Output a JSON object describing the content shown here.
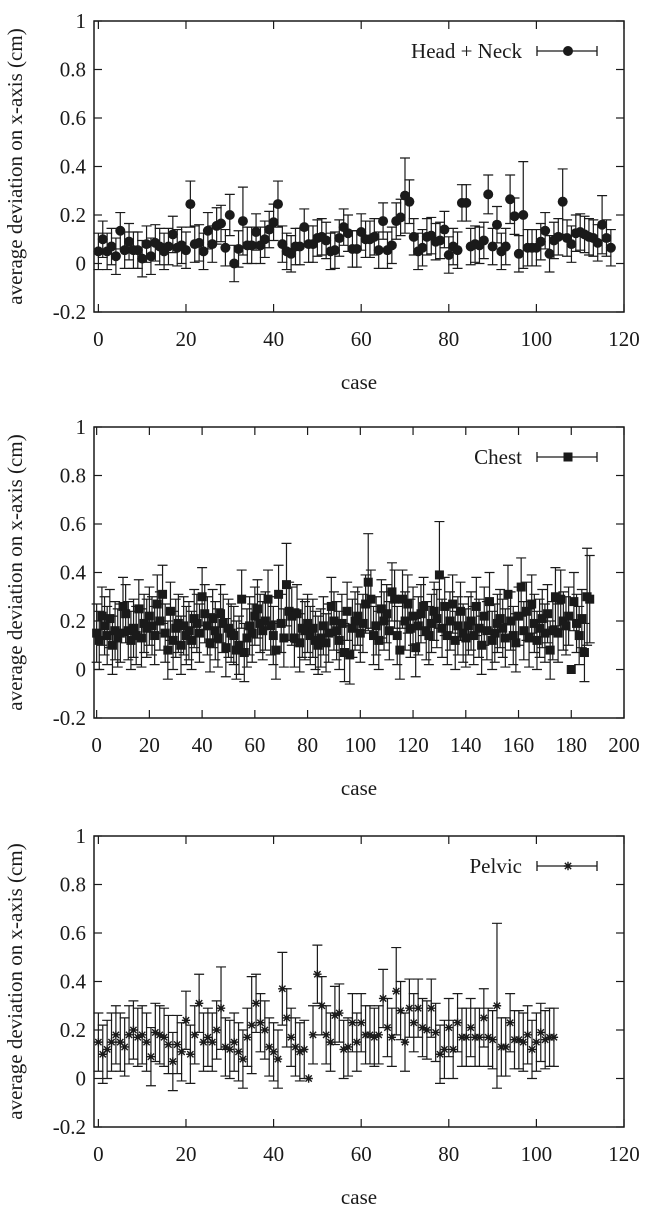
{
  "chart_data": [
    {
      "type": "scatter",
      "title": "",
      "legend": "Head + Neck",
      "legend_placement": "top-right",
      "marker": "circle",
      "xlabel": "case",
      "ylabel": "average deviation on x-axis (cm)",
      "xlim": [
        -1,
        120
      ],
      "ylim": [
        -0.2,
        1
      ],
      "xticks": [
        "0",
        "20",
        "40",
        "60",
        "80",
        "100",
        "120"
      ],
      "yticks": [
        "-0.2",
        "0",
        "0.2",
        "0.4",
        "0.6",
        "0.8",
        "1"
      ],
      "values": [
        0.05,
        0.1,
        0.05,
        0.07,
        0.03,
        0.135,
        0.055,
        0.09,
        0.055,
        0.055,
        0.02,
        0.08,
        0.03,
        0.085,
        0.07,
        0.05,
        0.07,
        0.12,
        0.065,
        0.075,
        0.055,
        0.245,
        0.08,
        0.085,
        0.05,
        0.135,
        0.08,
        0.155,
        0.165,
        0.065,
        0.2,
        0.0,
        0.06,
        0.175,
        0.075,
        0.075,
        0.13,
        0.075,
        0.1,
        0.14,
        0.17,
        0.245,
        0.08,
        0.05,
        0.04,
        0.07,
        0.07,
        0.15,
        0.08,
        0.08,
        0.105,
        0.11,
        0.095,
        0.05,
        0.055,
        0.105,
        0.15,
        0.125,
        0.06,
        0.06,
        0.13,
        0.1,
        0.1,
        0.11,
        0.055,
        0.175,
        0.055,
        0.075,
        0.175,
        0.19,
        0.28,
        0.255,
        0.11,
        0.05,
        0.065,
        0.11,
        0.115,
        0.09,
        0.095,
        0.14,
        0.035,
        0.07,
        0.055,
        0.25,
        0.25,
        0.07,
        0.08,
        0.075,
        0.095,
        0.285,
        0.07,
        0.16,
        0.05,
        0.07,
        0.265,
        0.195,
        0.04,
        0.2,
        0.065,
        0.065,
        0.065,
        0.09,
        0.135,
        0.04,
        0.095,
        0.11,
        0.255,
        0.105,
        0.08,
        0.125,
        0.13,
        0.12,
        0.11,
        0.105,
        0.085,
        0.16,
        0.105,
        0.065
      ],
      "error_default": 0.075,
      "error_overrides": {
        "21": 0.095,
        "30": 0.085,
        "33": 0.14,
        "41": 0.095,
        "70": 0.155,
        "71": 0.09,
        "89": 0.08,
        "94": 0.1,
        "97": 0.22,
        "106": 0.135,
        "115": 0.12
      }
    },
    {
      "type": "scatter",
      "title": "",
      "legend": "Chest",
      "legend_placement": "top-right",
      "marker": "square",
      "xlabel": "case",
      "ylabel": "average deviation on x-axis (cm)",
      "xlim": [
        -1,
        200
      ],
      "ylim": [
        -0.2,
        1
      ],
      "xticks": [
        "0",
        "20",
        "40",
        "60",
        "80",
        "100",
        "120",
        "140",
        "160",
        "180",
        "200"
      ],
      "yticks": [
        "-0.2",
        "0",
        "0.2",
        "0.4",
        "0.6",
        "0.8",
        "1"
      ],
      "values": [
        0.15,
        0.12,
        0.22,
        0.18,
        0.14,
        0.21,
        0.1,
        0.16,
        0.13,
        0.15,
        0.26,
        0.23,
        0.16,
        0.12,
        0.17,
        0.14,
        0.25,
        0.13,
        0.19,
        0.17,
        0.22,
        0.18,
        0.14,
        0.27,
        0.2,
        0.31,
        0.15,
        0.08,
        0.24,
        0.12,
        0.17,
        0.19,
        0.1,
        0.18,
        0.14,
        0.16,
        0.12,
        0.21,
        0.19,
        0.15,
        0.3,
        0.23,
        0.18,
        0.11,
        0.21,
        0.16,
        0.13,
        0.23,
        0.19,
        0.09,
        0.17,
        0.15,
        0.14,
        0.08,
        0.1,
        0.29,
        0.07,
        0.13,
        0.18,
        0.15,
        0.22,
        0.25,
        0.19,
        0.16,
        0.2,
        0.29,
        0.18,
        0.14,
        0.08,
        0.31,
        0.19,
        0.13,
        0.35,
        0.24,
        0.22,
        0.13,
        0.23,
        0.11,
        0.17,
        0.16,
        0.19,
        0.14,
        0.17,
        0.12,
        0.1,
        0.13,
        0.18,
        0.11,
        0.15,
        0.26,
        0.2,
        0.16,
        0.12,
        0.19,
        0.07,
        0.24,
        0.06,
        0.17,
        0.2,
        0.22,
        0.15,
        0.19,
        0.27,
        0.36,
        0.29,
        0.14,
        0.18,
        0.12,
        0.25,
        0.2,
        0.23,
        0.16,
        0.32,
        0.29,
        0.14,
        0.08,
        0.29,
        0.2,
        0.27,
        0.17,
        0.22,
        0.09,
        0.18,
        0.23,
        0.26,
        0.16,
        0.14,
        0.19,
        0.24,
        0.21,
        0.39,
        0.17,
        0.26,
        0.14,
        0.2,
        0.27,
        0.12,
        0.18,
        0.24,
        0.15,
        0.13,
        0.18,
        0.2,
        0.14,
        0.26,
        0.17,
        0.1,
        0.22,
        0.16,
        0.28,
        0.12,
        0.15,
        0.19,
        0.21,
        0.17,
        0.13,
        0.31,
        0.2,
        0.14,
        0.11,
        0.22,
        0.34,
        0.16,
        0.24,
        0.13,
        0.27,
        0.19,
        0.12,
        0.17,
        0.21,
        0.15,
        0.23,
        0.08,
        0.16,
        0.3,
        0.15,
        0.29,
        0.2,
        0.18,
        0.22,
        0.0,
        0.28,
        0.19,
        0.14,
        0.21,
        0.07,
        0.3,
        0.29
      ],
      "error_default": 0.12,
      "error_overrides": {
        "72": 0.17,
        "103": 0.2,
        "130": 0.22,
        "180": 0.0,
        "186": 0.2,
        "187": 0.18
      }
    },
    {
      "type": "scatter",
      "title": "",
      "legend": "Pelvic",
      "legend_placement": "top-right",
      "marker": "star",
      "xlabel": "case",
      "ylabel": "average deviation on x-axis (cm)",
      "xlim": [
        -1,
        120
      ],
      "ylim": [
        -0.2,
        1
      ],
      "xticks": [
        "0",
        "20",
        "40",
        "60",
        "80",
        "100",
        "120"
      ],
      "yticks": [
        "-0.2",
        "0",
        "0.2",
        "0.4",
        "0.6",
        "0.8",
        "1"
      ],
      "values": [
        0.15,
        0.1,
        0.12,
        0.15,
        0.18,
        0.15,
        0.13,
        0.18,
        0.2,
        0.17,
        0.18,
        0.15,
        0.09,
        0.19,
        0.18,
        0.17,
        0.14,
        0.07,
        0.14,
        0.11,
        0.24,
        0.1,
        0.18,
        0.31,
        0.15,
        0.17,
        0.15,
        0.2,
        0.29,
        0.13,
        0.12,
        0.15,
        0.11,
        0.08,
        0.17,
        0.22,
        0.31,
        0.23,
        0.2,
        0.13,
        0.11,
        0.08,
        0.37,
        0.25,
        0.17,
        0.13,
        0.11,
        0.12,
        0.0,
        0.18,
        0.43,
        0.3,
        0.18,
        0.15,
        0.26,
        0.27,
        0.12,
        0.13,
        0.23,
        0.15,
        0.23,
        0.18,
        0.18,
        0.17,
        0.18,
        0.33,
        0.21,
        0.17,
        0.36,
        0.28,
        0.15,
        0.29,
        0.23,
        0.29,
        0.21,
        0.2,
        0.29,
        0.19,
        0.1,
        0.12,
        0.21,
        0.12,
        0.23,
        0.17,
        0.17,
        0.21,
        0.17,
        0.17,
        0.25,
        0.17,
        0.16,
        0.3,
        0.13,
        0.13,
        0.23,
        0.16,
        0.16,
        0.15,
        0.18,
        0.12,
        0.15,
        0.19,
        0.16,
        0.17,
        0.17
      ],
      "error_default": 0.12,
      "error_overrides": {
        "23": 0.12,
        "28": 0.17,
        "35": 0.2,
        "42": 0.15,
        "48": 0.0,
        "50": 0.12,
        "68": 0.18,
        "91": 0.34
      }
    }
  ]
}
